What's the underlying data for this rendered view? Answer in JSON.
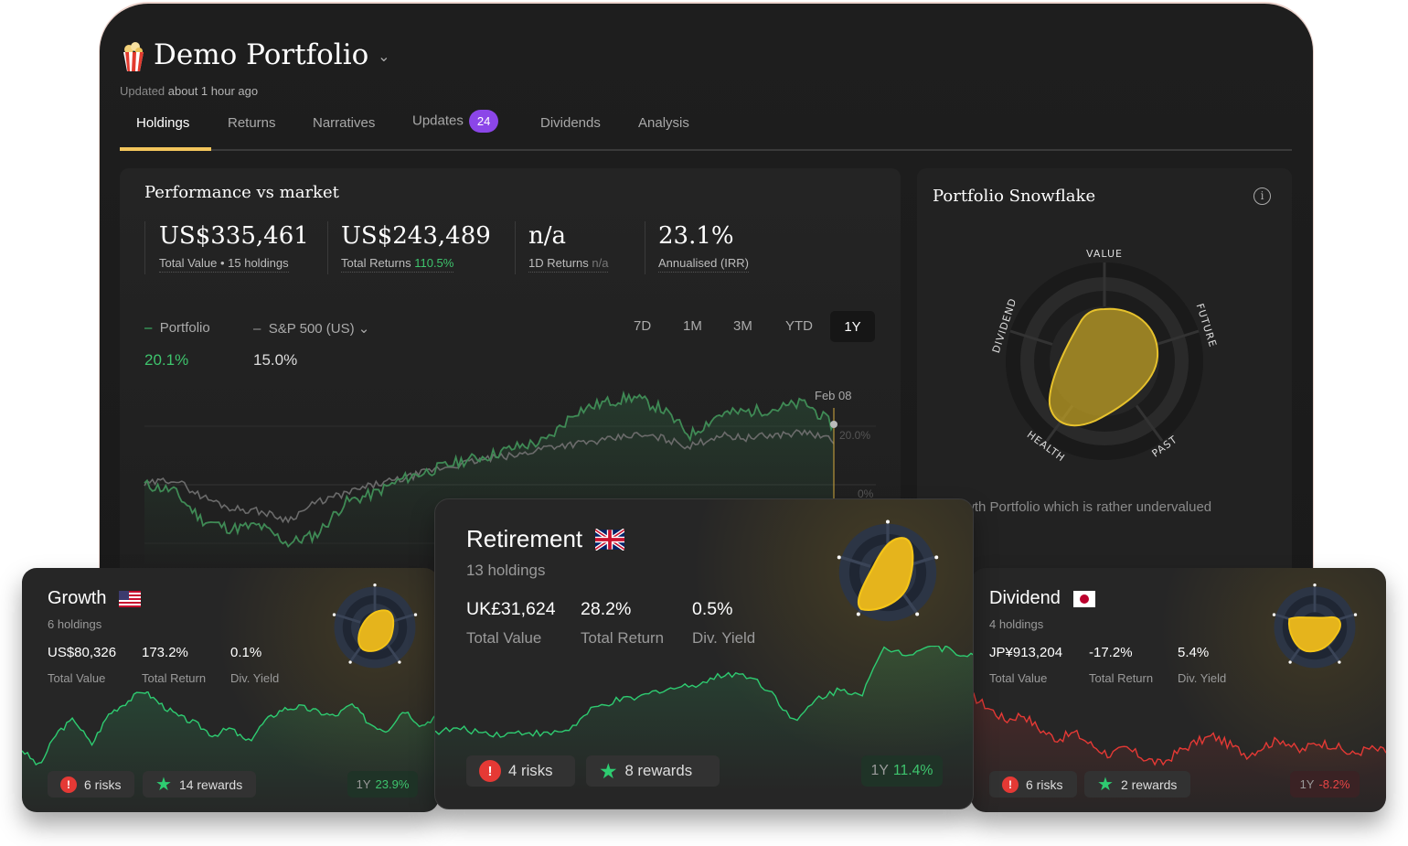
{
  "header": {
    "title": "Demo Portfolio",
    "updated_prefix": "Updated",
    "updated_time": "about 1 hour ago"
  },
  "tabs": [
    {
      "label": "Holdings"
    },
    {
      "label": "Returns"
    },
    {
      "label": "Narratives"
    },
    {
      "label": "Updates",
      "badge": "24"
    },
    {
      "label": "Dividends"
    },
    {
      "label": "Analysis"
    }
  ],
  "performance": {
    "title": "Performance vs market",
    "stats": [
      {
        "value": "US$335,461",
        "label": "Total Value",
        "extra": "• 15 holdings"
      },
      {
        "value": "US$243,489",
        "label": "Total Returns",
        "extra": "110.5%"
      },
      {
        "value": "n/a",
        "label": "1D Returns",
        "extra": "n/a"
      },
      {
        "value": "23.1%",
        "label": "Annualised (IRR)"
      }
    ],
    "legend": [
      {
        "name": "Portfolio",
        "value": "20.1%",
        "color": "#3ec46d"
      },
      {
        "name": "S&P 500 (US)",
        "value": "15.0%",
        "color": "#9a9a9a"
      }
    ],
    "timeframes": [
      "7D",
      "1M",
      "3M",
      "YTD",
      "1Y"
    ],
    "selected_timeframe": "1Y",
    "date_label": "Feb 08",
    "y_labels": [
      "20.0%",
      "0%"
    ],
    "portfolio_series": [
      0,
      -2,
      -12,
      -15,
      -14,
      -20,
      -17,
      -6,
      -3,
      2,
      5,
      8,
      10,
      13,
      15,
      25,
      28,
      30,
      26,
      17,
      24,
      25,
      26,
      28,
      20
    ],
    "market_series": [
      0,
      2,
      -4,
      -8,
      -9,
      -12,
      -6,
      -3,
      0,
      2,
      5,
      7,
      9,
      10,
      13,
      14,
      15,
      17,
      16,
      13,
      17,
      16,
      17,
      18,
      15
    ]
  },
  "snowflake": {
    "title": "Portfolio Snowflake",
    "axes": [
      "VALUE",
      "FUTURE",
      "PAST",
      "HEALTH",
      "DIVIDEND"
    ],
    "scores": [
      3,
      3,
      3,
      4,
      1
    ],
    "summary": "Growth Portfolio which is rather undervalued"
  },
  "cards": [
    {
      "name": "Growth",
      "flag": "us",
      "holdings": "6 holdings",
      "total_value": "US$80,326",
      "total_return": "173.2%",
      "div_yield": "0.1%",
      "labels": [
        "Total Value",
        "Total Return",
        "Div. Yield"
      ],
      "risks": "6 risks",
      "rewards": "14 rewards",
      "period": "1Y",
      "period_return": "23.9%",
      "trend": "up",
      "spark": [
        -5,
        -12,
        2,
        8,
        -3,
        10,
        15,
        20,
        14,
        9,
        6,
        1,
        4,
        -2,
        7,
        12,
        13,
        11,
        9,
        14,
        6,
        3,
        12,
        5,
        10
      ]
    },
    {
      "name": "Retirement",
      "flag": "uk",
      "holdings": "13 holdings",
      "total_value": "UK£31,624",
      "total_return": "28.2%",
      "div_yield": "0.5%",
      "labels": [
        "Total Value",
        "Total Return",
        "Div. Yield"
      ],
      "risks": "4 risks",
      "rewards": "8 rewards",
      "period": "1Y",
      "period_return": "11.4%",
      "trend": "up",
      "spark": [
        0,
        1,
        0,
        -1,
        0,
        -1,
        1,
        8,
        11,
        12,
        15,
        16,
        18,
        21,
        20,
        14,
        3,
        12,
        15,
        14,
        30,
        28,
        31,
        29,
        27
      ]
    },
    {
      "name": "Dividend",
      "flag": "jp",
      "holdings": "4 holdings",
      "total_value": "JP¥913,204",
      "total_return": "-17.2%",
      "div_yield": "5.4%",
      "labels": [
        "Total Value",
        "Total Return",
        "Div. Yield"
      ],
      "risks": "6 risks",
      "rewards": "2 rewards",
      "period": "1Y",
      "period_return": "-8.2%",
      "trend": "down",
      "spark": [
        10,
        6,
        2,
        4,
        -1,
        -4,
        -2,
        -6,
        -9,
        -7,
        -10,
        -12,
        -8,
        -5,
        -3,
        -6,
        -9,
        -6,
        -4,
        -8,
        -5,
        -6,
        -9,
        -7,
        -8
      ]
    }
  ]
}
